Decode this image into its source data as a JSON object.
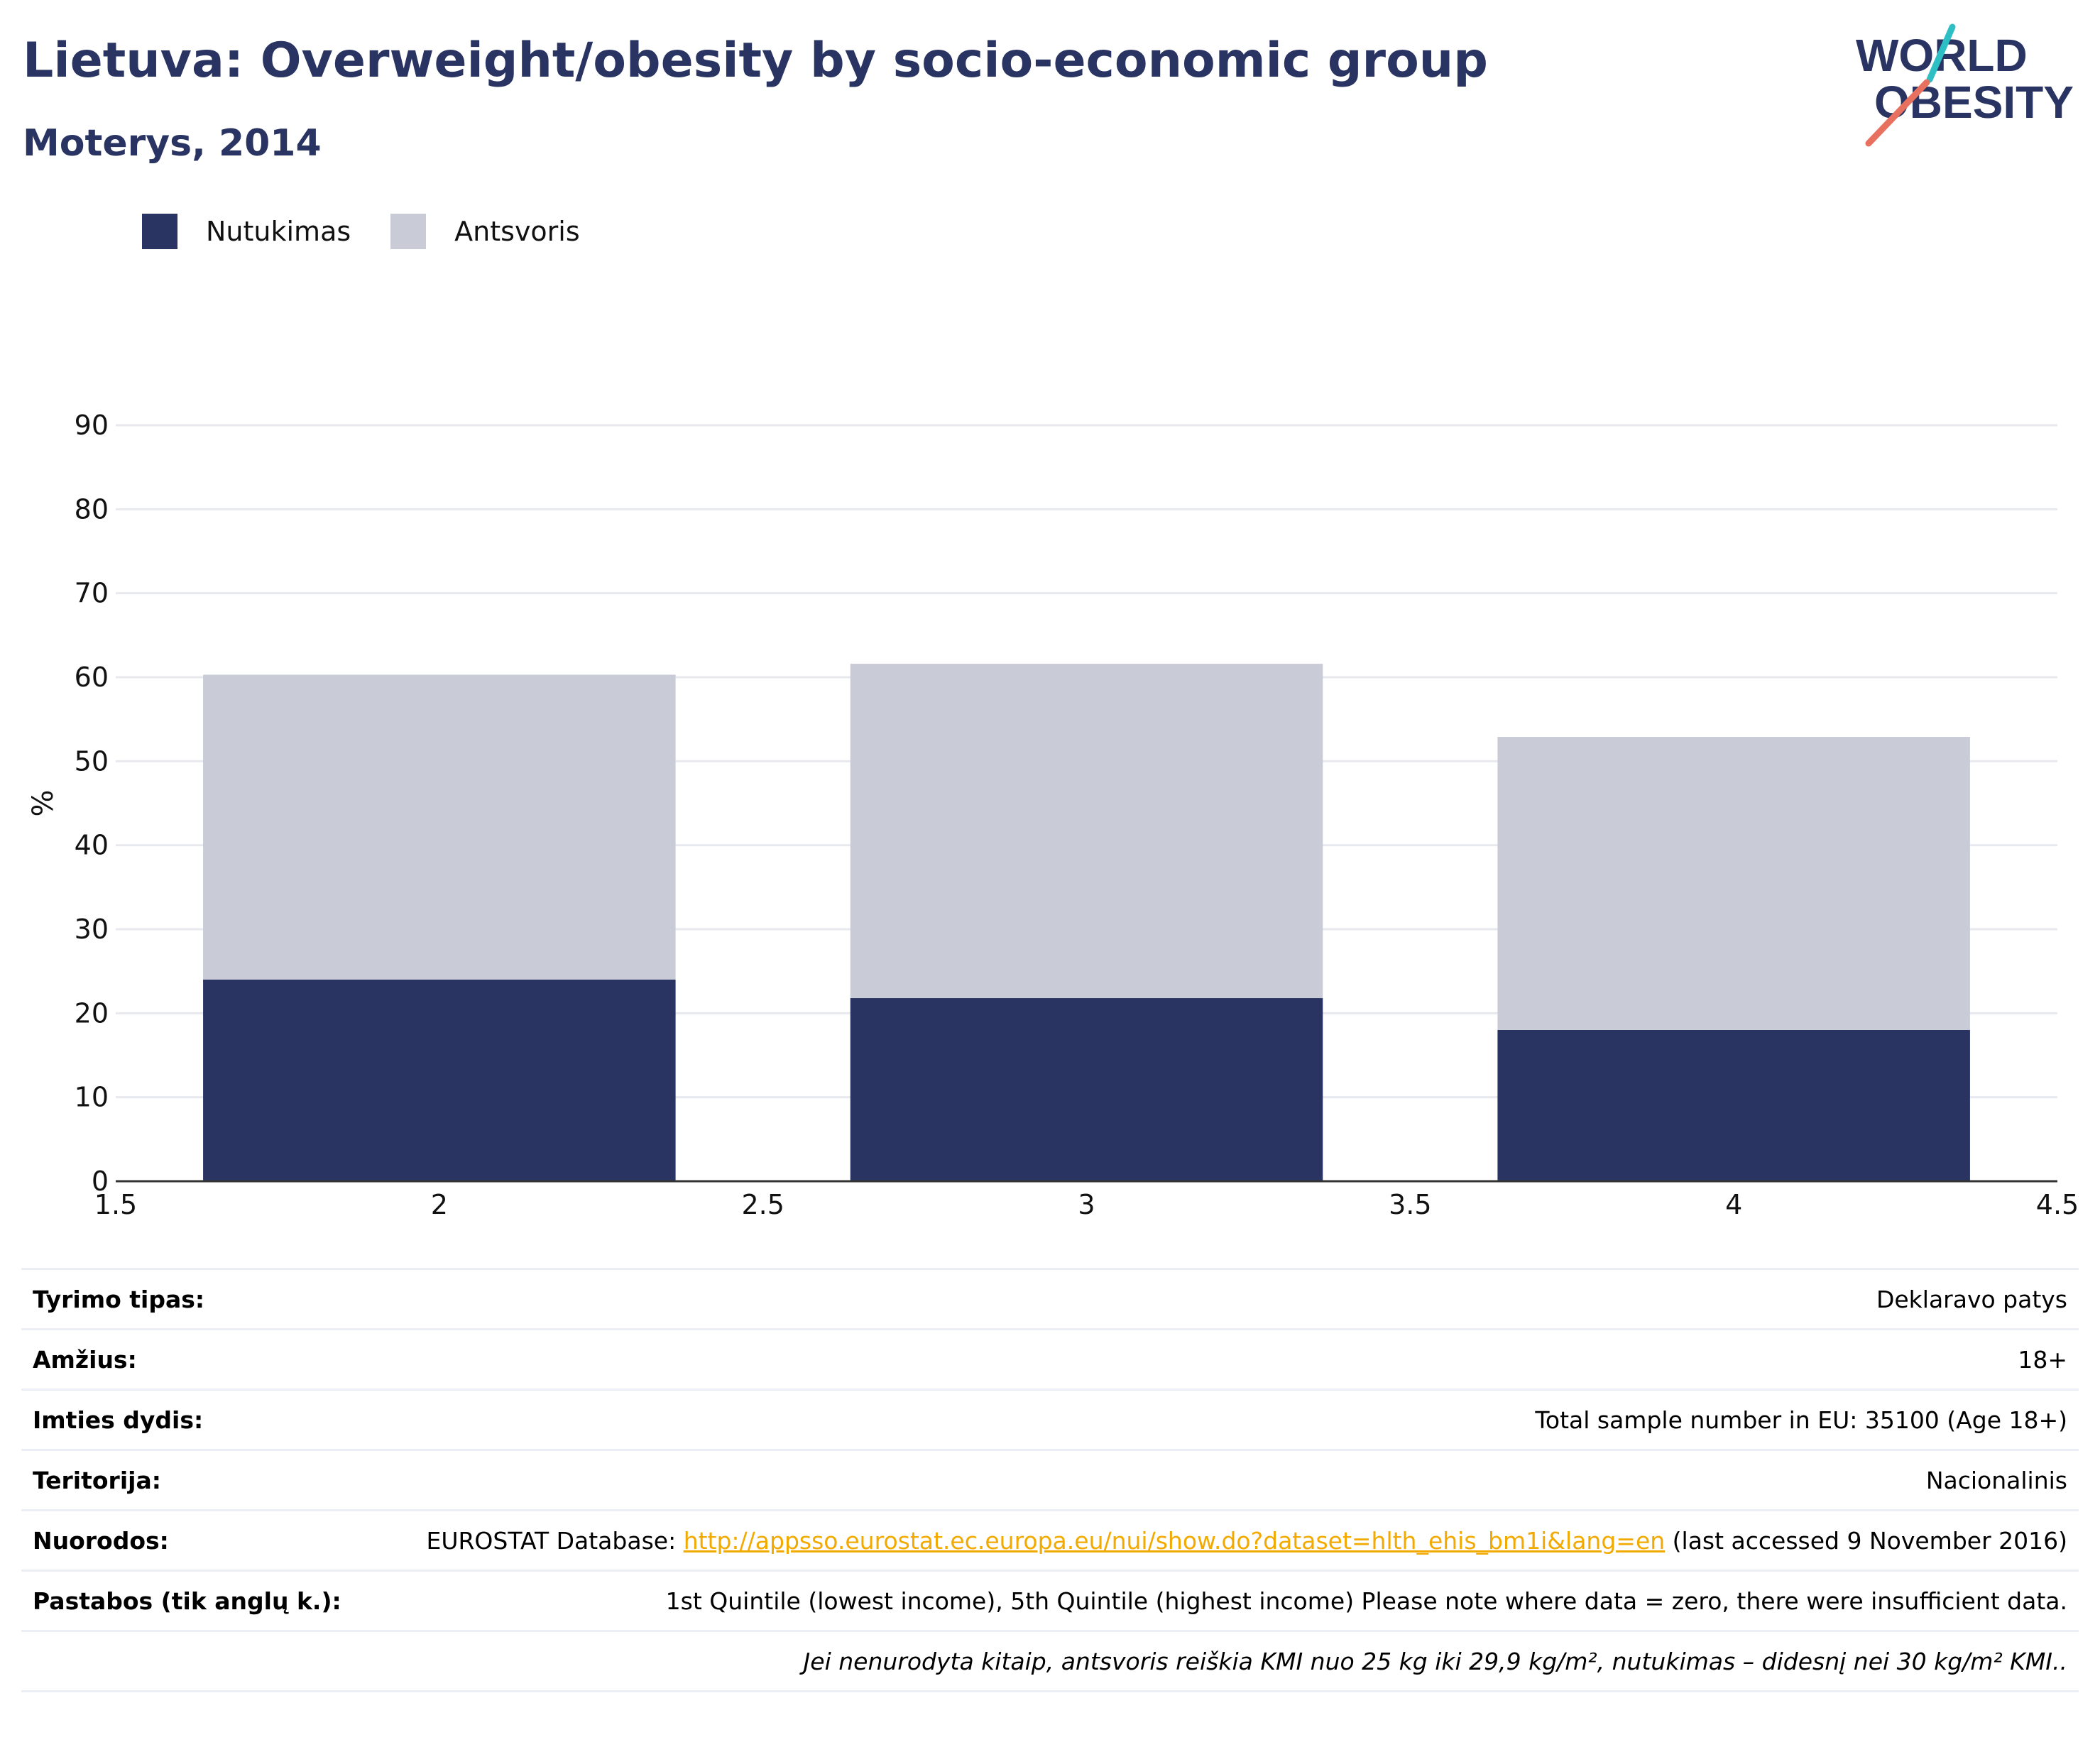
{
  "header": {
    "title": "Lietuva: Overweight/obesity by socio-economic group",
    "subtitle": "Moterys, 2014"
  },
  "logo": {
    "line1": "WORLD",
    "line2": "OBESITY"
  },
  "colors": {
    "obesity": "#293462",
    "overweight": "#c9ccd7",
    "accent": "#f2a900",
    "logo_teal": "#2ebfc4",
    "logo_coral": "#e8705f"
  },
  "chart_data": {
    "type": "bar",
    "stacked": true,
    "x": [
      2,
      3,
      4
    ],
    "series": [
      {
        "name": "Nutukimas",
        "values": [
          24,
          21.8,
          18
        ]
      },
      {
        "name": "Antsvoris",
        "values": [
          36.3,
          39.8,
          34.9
        ]
      }
    ],
    "ylabel": "%",
    "xlabel": "",
    "xlim": [
      1.5,
      4.5
    ],
    "ylim": [
      0,
      90
    ],
    "xticks": [
      "1.5",
      "2",
      "2.5",
      "3",
      "3.5",
      "4",
      "4.5"
    ],
    "yticks": [
      "0",
      "10",
      "20",
      "30",
      "40",
      "50",
      "60",
      "70",
      "80",
      "90"
    ],
    "grid": true,
    "legend_position": "top-left"
  },
  "meta": [
    {
      "key": "Tyrimo tipas:",
      "value": "Deklaravo patys"
    },
    {
      "key": "Amžius:",
      "value": "18+"
    },
    {
      "key": "Imties dydis:",
      "value": "Total sample number in EU: 35100 (Age 18+)"
    },
    {
      "key": "Teritorija:",
      "value": "Nacionalinis"
    },
    {
      "key": "Nuorodos:",
      "prefix": "EUROSTAT Database: ",
      "link": "http://appsso.eurostat.ec.europa.eu/nui/show.do?dataset=hlth_ehis_bm1i&lang=en",
      "suffix": " (last accessed 9 November 2016)"
    },
    {
      "key": "Pastabos (tik anglų k.):",
      "value": "1st Quintile (lowest income), 5th Quintile (highest income) Please note where data = zero, there were insufficient data."
    }
  ],
  "footnote": "Jei nenurodyta kitaip, antsvoris reiškia KMI nuo 25 kg iki 29,9 kg/m², nutukimas – didesnį nei 30 kg/m² KMI.."
}
